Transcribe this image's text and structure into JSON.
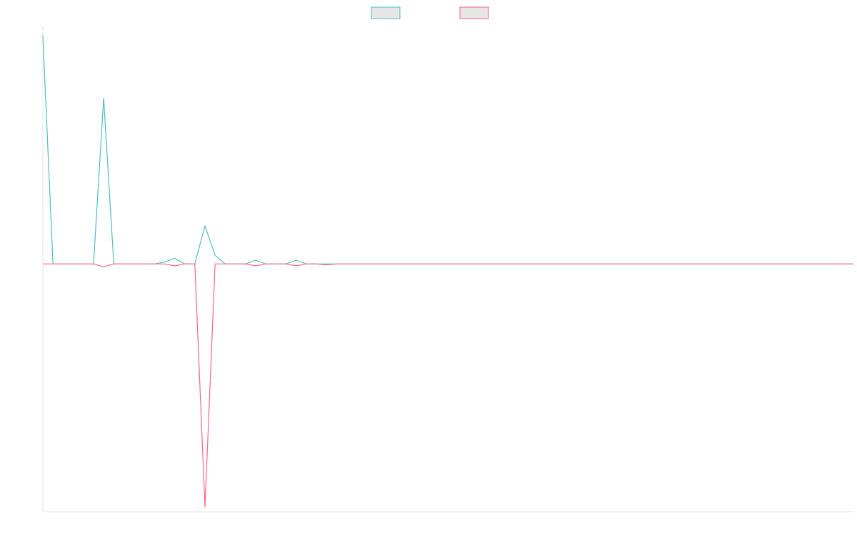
{
  "chart_data": {
    "type": "line",
    "title": "",
    "xlabel": "",
    "ylabel": "",
    "ylim": [
      -26,
      25
    ],
    "x": [
      0,
      1,
      2,
      3,
      4,
      5,
      6,
      7,
      8,
      9,
      10,
      11,
      12,
      13,
      14,
      15,
      16,
      17,
      18,
      19,
      20,
      21,
      22,
      23,
      24,
      25,
      26,
      27,
      28,
      29,
      30,
      31,
      32,
      33,
      34,
      35,
      36,
      37,
      38,
      39,
      40,
      41,
      42,
      43,
      44,
      45,
      46,
      47,
      48,
      49,
      50,
      51,
      52,
      53,
      54,
      55,
      56,
      57,
      58,
      59,
      60,
      61,
      62,
      63,
      64,
      65,
      66,
      67,
      68,
      69,
      70,
      71,
      72,
      73,
      74,
      75,
      76,
      77,
      78,
      79,
      80
    ],
    "series": [
      {
        "name": "",
        "color": "#4bc0c0",
        "fill": "#e6e6e6",
        "values": [
          24,
          0,
          0,
          0,
          0,
          0,
          17.4,
          0,
          0,
          0,
          0,
          0,
          0.2,
          0.6,
          0,
          0,
          4,
          0.9,
          0,
          0,
          0,
          0.4,
          0,
          0,
          0,
          0.4,
          0,
          0,
          0,
          0,
          0,
          0,
          0,
          0,
          0,
          0,
          0,
          0,
          0,
          0,
          0,
          0,
          0,
          0,
          0,
          0,
          0,
          0,
          0,
          0,
          0,
          0,
          0,
          0,
          0,
          0,
          0,
          0,
          0,
          0,
          0,
          0,
          0,
          0,
          0,
          0,
          0,
          0,
          0,
          0,
          0,
          0,
          0,
          0,
          0,
          0,
          0,
          0,
          0,
          0,
          0
        ]
      },
      {
        "name": "",
        "color": "#ff6384",
        "fill": "#e6e6e6",
        "values": [
          0,
          0,
          0,
          0,
          0,
          0,
          -0.3,
          0,
          0,
          0,
          0,
          0,
          0,
          -0.2,
          0,
          0,
          -25.5,
          0,
          0,
          0,
          0,
          -0.2,
          0,
          0,
          0,
          -0.2,
          0,
          0,
          -0.1,
          0,
          0,
          0,
          0,
          0,
          0,
          0,
          0,
          0,
          0,
          0,
          0,
          0,
          0,
          0,
          0,
          0,
          0,
          0,
          0,
          0,
          0,
          0,
          0,
          0,
          0,
          0,
          0,
          0,
          0,
          0,
          0,
          0,
          0,
          0,
          0,
          0,
          0,
          0,
          0,
          0,
          0,
          0,
          0,
          0,
          0,
          0,
          0,
          0,
          0,
          0,
          0
        ]
      }
    ],
    "grid": false,
    "legend": "top-center"
  }
}
